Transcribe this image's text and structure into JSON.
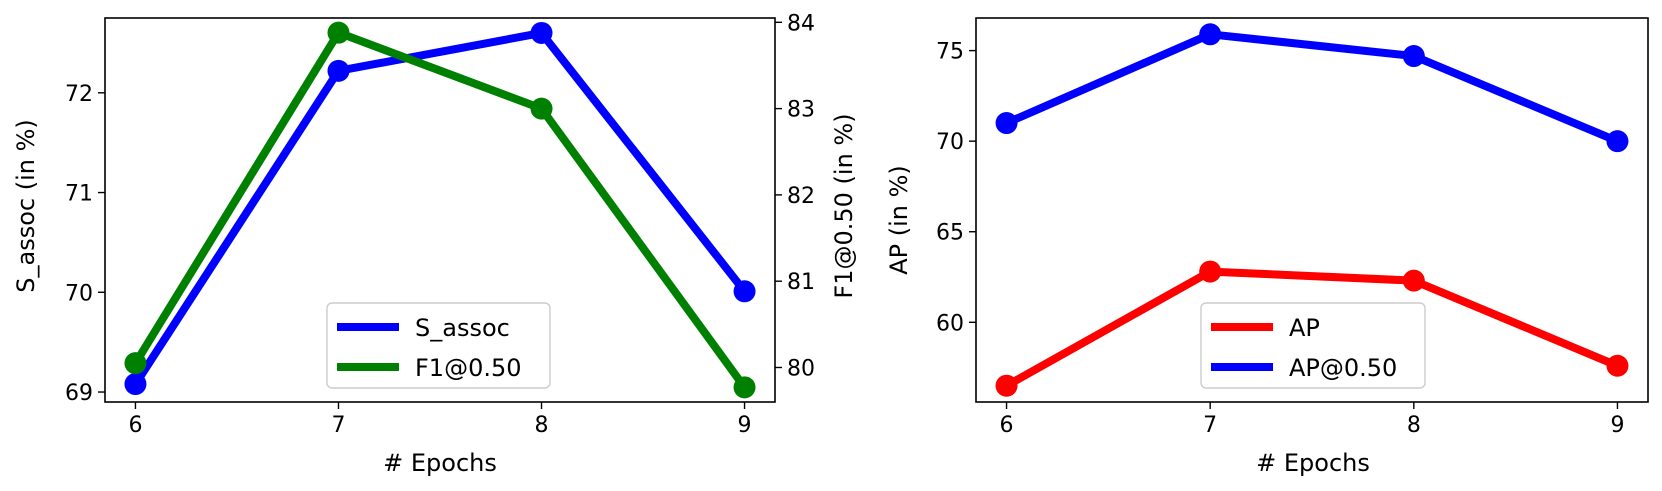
{
  "chart_data": [
    {
      "type": "line",
      "x": [
        6,
        7,
        8,
        9
      ],
      "xlabel": "# Epochs",
      "xticks": [
        "6",
        "7",
        "8",
        "9"
      ],
      "grid": false,
      "legend_position": "bottom-center",
      "series": [
        {
          "name": "S_assoc",
          "axis": "left",
          "color": "#0000ff",
          "values": [
            69.08,
            72.22,
            72.6,
            70.01
          ]
        },
        {
          "name": "F1@0.50",
          "axis": "right",
          "color": "#008000",
          "values": [
            80.05,
            83.88,
            83.0,
            79.77
          ]
        }
      ],
      "y_left": {
        "label": "S_assoc (in %)",
        "ylim": [
          68.9,
          72.75
        ],
        "ticks": [
          69,
          70,
          71,
          72
        ],
        "tick_labels": [
          "69",
          "70",
          "71",
          "72"
        ]
      },
      "y_right": {
        "label": "F1@0.50 (in %)",
        "ylim": [
          79.6,
          84.05
        ],
        "ticks": [
          80,
          81,
          82,
          83,
          84
        ],
        "tick_labels": [
          "80",
          "81",
          "82",
          "83",
          "84"
        ]
      }
    },
    {
      "type": "line",
      "x": [
        6,
        7,
        8,
        9
      ],
      "xlabel": "# Epochs",
      "xticks": [
        "6",
        "7",
        "8",
        "9"
      ],
      "grid": false,
      "legend_position": "bottom-center",
      "series": [
        {
          "name": "AP",
          "color": "#ff0000",
          "values": [
            56.5,
            62.8,
            62.3,
            57.6
          ]
        },
        {
          "name": "AP@0.50",
          "color": "#0000ff",
          "values": [
            71.0,
            75.9,
            74.7,
            70.0
          ]
        }
      ],
      "y_left": {
        "label": "AP (in %)",
        "ylim": [
          55.6,
          76.8
        ],
        "ticks": [
          60,
          65,
          70,
          75
        ],
        "tick_labels": [
          "60",
          "65",
          "70",
          "75"
        ]
      }
    }
  ]
}
